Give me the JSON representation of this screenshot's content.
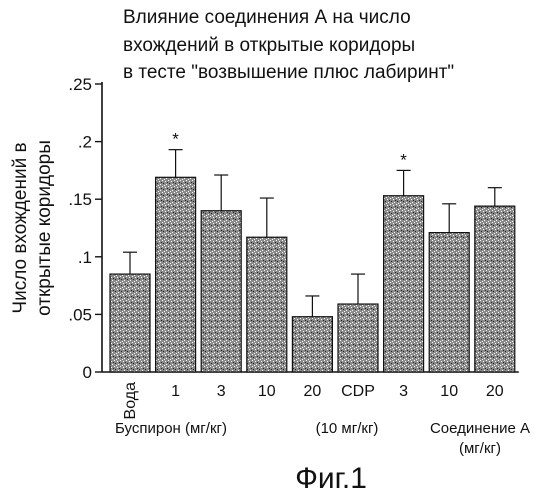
{
  "chart_data": {
    "type": "bar",
    "title_lines": [
      "Влияние соединения А на число",
      "вхождений в открытые коридоры",
      "в тесте \"возвышение плюс лабиринт\""
    ],
    "ylabel_lines": [
      "Число вхождений в",
      "открытые коридоры"
    ],
    "ylim": [
      0,
      0.25
    ],
    "yticks": [
      {
        "value": 0,
        "label": "0"
      },
      {
        "value": 0.05,
        "label": ".05"
      },
      {
        "value": 0.1,
        "label": ".1"
      },
      {
        "value": 0.15,
        "label": ".15"
      },
      {
        "value": 0.2,
        "label": ".2"
      },
      {
        "value": 0.25,
        "label": ".25"
      }
    ],
    "categories": [
      "Вода",
      "1",
      "3",
      "10",
      "20",
      "CDP",
      "3",
      "10",
      "20"
    ],
    "values": [
      0.085,
      0.169,
      0.14,
      0.117,
      0.048,
      0.059,
      0.153,
      0.121,
      0.144
    ],
    "error_upper": [
      0.104,
      0.193,
      0.171,
      0.151,
      0.066,
      0.085,
      0.175,
      0.146,
      0.16
    ],
    "significance": [
      "",
      "*",
      "",
      "",
      "",
      "",
      "*",
      "",
      ""
    ],
    "groups": [
      {
        "label_lines": [
          "Буспирон (мг/кг)"
        ]
      },
      {
        "label_lines": [
          "(10 мг/кг)"
        ]
      },
      {
        "label_lines": [
          "Соединение А",
          "(мг/кг)"
        ]
      }
    ],
    "bar_pattern": "stippled",
    "grid": false
  },
  "figure_caption": "Фиг.1",
  "colors": {
    "ink": "#111111",
    "bar_fill": "#7a7a7a",
    "paper": "#ffffff"
  }
}
